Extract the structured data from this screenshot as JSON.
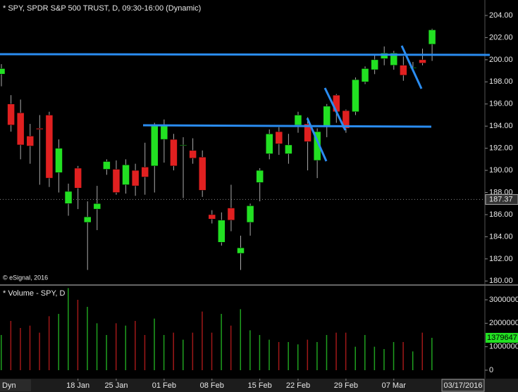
{
  "chart_data": [
    {
      "type": "candlestick",
      "title": "* SPY, SPDR S&P 500 TRUST, D, 09:30-16:00 (Dynamic)",
      "credit": "© eSignal, 2016",
      "mode": "Dyn",
      "cursor_date": "03/17/2016",
      "categories": [
        null,
        null,
        null,
        null,
        null,
        null,
        null,
        null,
        "18 Jan",
        null,
        null,
        null,
        "25 Jan",
        null,
        null,
        null,
        null,
        "01 Feb",
        null,
        null,
        null,
        null,
        "08 Feb",
        null,
        null,
        null,
        null,
        "15 Feb",
        null,
        null,
        null,
        "22 Feb",
        null,
        null,
        null,
        null,
        "29 Feb",
        null,
        null,
        null,
        null,
        "07 Mar",
        null,
        null,
        null,
        null
      ],
      "open": [
        198.7,
        196,
        195.2,
        193.1,
        193.8,
        195,
        189.8,
        187,
        190.2,
        185.3,
        186.5,
        190.1,
        190.1,
        188.7,
        190,
        190.3,
        190.4,
        192.8,
        192.8,
        192.3,
        191.8,
        191.2,
        186,
        183.5,
        186.6,
        182.5,
        185.3,
        188.9,
        191.5,
        193.5,
        191.5,
        194.1,
        194.2,
        190.9,
        194,
        196.8,
        195.4,
        195.3,
        198,
        199.1,
        200.1,
        199.5,
        199.5,
        199.3,
        200,
        201.4
      ],
      "high": [
        199.6,
        196.8,
        196.4,
        194.2,
        195,
        195.3,
        192.8,
        188.8,
        190.4,
        187.2,
        188.6,
        191,
        190.9,
        191,
        190.6,
        192.5,
        194.3,
        194.6,
        193.3,
        193,
        192.9,
        191.8,
        186.4,
        186.2,
        188.7,
        184.1,
        187,
        190.2,
        193.7,
        193.9,
        193.3,
        195.3,
        194.8,
        193.8,
        196,
        196.9,
        195.5,
        198.4,
        199.4,
        200.5,
        201.2,
        200.8,
        200.3,
        199.8,
        201,
        202.8
      ],
      "low": [
        197.6,
        193.5,
        191,
        190.6,
        188.7,
        188.5,
        188,
        185.9,
        186.5,
        181,
        184.6,
        189.6,
        187.8,
        187.9,
        187.7,
        187.8,
        188,
        190.7,
        190,
        187.5,
        190.6,
        187.6,
        185.2,
        183.2,
        184.5,
        181,
        184.1,
        187.2,
        191,
        191.4,
        190.6,
        193.4,
        190,
        189.3,
        193,
        194.3,
        193.4,
        195,
        197.8,
        198.7,
        199.5,
        199.1,
        198.1,
        198.9,
        199.5,
        199.9
      ],
      "close": [
        199.2,
        194.1,
        192.3,
        192.2,
        193.7,
        189.3,
        192,
        188.1,
        188.4,
        185.8,
        187,
        190.8,
        188,
        190.5,
        188.6,
        189.4,
        194,
        194,
        190.4,
        192.3,
        191.1,
        188.2,
        185.6,
        185.5,
        185.5,
        183,
        186.8,
        190,
        193.3,
        192.4,
        192.3,
        195,
        192.6,
        193.5,
        195.8,
        195.3,
        193.8,
        198.2,
        199.2,
        200,
        200.6,
        200.6,
        198.6,
        199.3,
        199.7,
        202.7
      ],
      "up_color": "#22e022",
      "down_color": "#e02020",
      "last_price": 187.37,
      "ylim": [
        179.7,
        205.4
      ],
      "yticks": [
        {
          "value": 180,
          "label": "180.00"
        },
        {
          "value": 182,
          "label": "182.00"
        },
        {
          "value": 184,
          "label": "184.00"
        },
        {
          "value": 186,
          "label": "186.00"
        },
        {
          "value": 188,
          "label": "188.00"
        },
        {
          "value": 190,
          "label": "190.00"
        },
        {
          "value": 192,
          "label": "192.00"
        },
        {
          "value": 194,
          "label": "194.00"
        },
        {
          "value": 196,
          "label": "196.00"
        },
        {
          "value": 198,
          "label": "198.00"
        },
        {
          "value": 200,
          "label": "200.00"
        },
        {
          "value": 202,
          "label": "202.00"
        },
        {
          "value": 204,
          "label": "204.00"
        }
      ]
    },
    {
      "type": "bar",
      "title": "* Volume - SPY, D",
      "values": [
        1500000,
        2100000,
        1800000,
        1900000,
        1600000,
        2300000,
        2400000,
        3500000,
        3000000,
        2700000,
        2000000,
        1500000,
        2000000,
        1900000,
        2100000,
        1500000,
        2200000,
        1500000,
        1600000,
        1300000,
        1600000,
        2500000,
        1600000,
        2400000,
        1900000,
        2600000,
        1700000,
        1500000,
        1300000,
        1200000,
        1200000,
        1100000,
        1300000,
        1200000,
        1500000,
        1600000,
        1600000,
        1000000,
        1500000,
        1000000,
        900000,
        1200000,
        1200000,
        800000,
        1600000,
        1379647
      ],
      "ylim": [
        -360000,
        3600000
      ],
      "yticks": [
        0,
        1000000,
        2000000,
        3000000
      ]
    }
  ]
}
